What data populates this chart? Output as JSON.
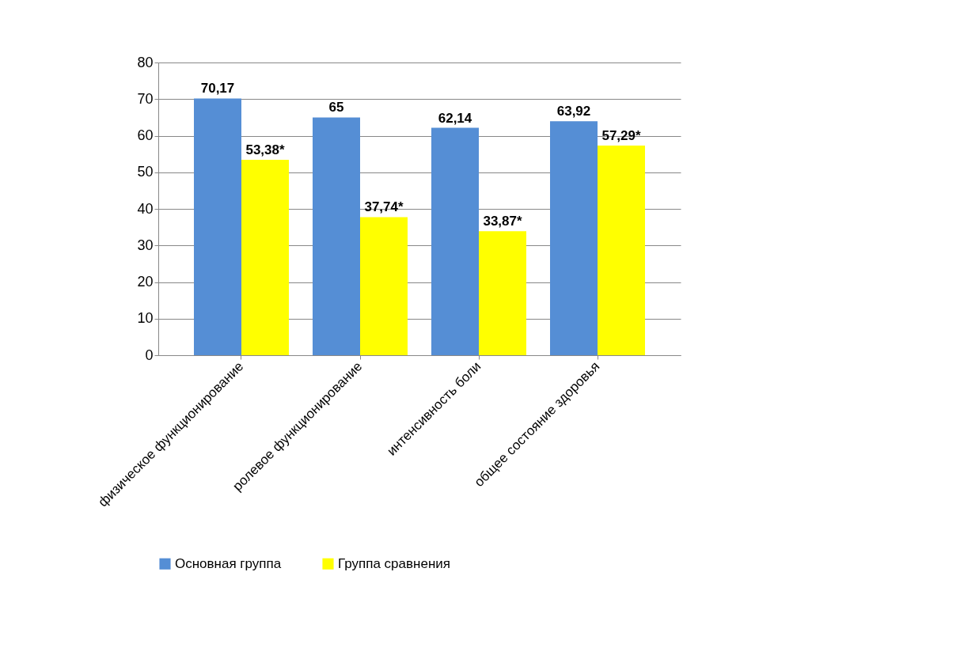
{
  "chart_data": {
    "type": "bar",
    "categories": [
      "физическое функционирование",
      "ролевое функционирование",
      "интенсивность боли",
      "общее состояние здоровья"
    ],
    "series": [
      {
        "name": "Основная группа",
        "color": "#558ed5",
        "values": [
          70.17,
          65,
          62.14,
          63.92
        ],
        "value_labels": [
          "70,17",
          "65",
          "62,14",
          "63,92"
        ]
      },
      {
        "name": "Группа сравнения",
        "color": "#ffff00",
        "values": [
          53.38,
          37.74,
          33.87,
          57.29
        ],
        "value_labels": [
          "53,38*",
          "37,74*",
          "33,87*",
          "57,29*"
        ]
      }
    ],
    "ylim": [
      0,
      80
    ],
    "yticks": [
      0,
      10,
      20,
      30,
      40,
      50,
      60,
      70,
      80
    ],
    "grid": "y",
    "legend": "bottom"
  }
}
